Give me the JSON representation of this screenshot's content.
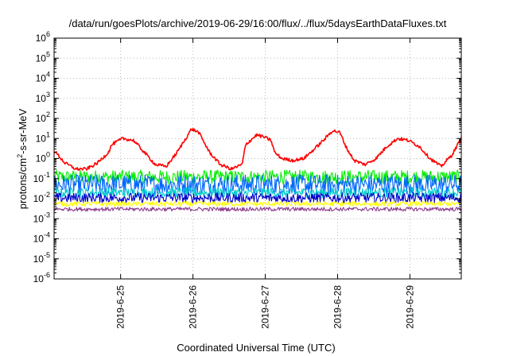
{
  "chart_data": {
    "type": "line",
    "title": "/data/run/goesPlots/archive/2019-06-29/16:00/flux/../flux/5daysEarthDataFluxes.txt",
    "xlabel": "Coordinated Universal Time (UTC)",
    "ylabel": {
      "before": "protons/cm",
      "sup": "2",
      "after": "-s-sr-MeV"
    },
    "yscale": "log",
    "ylim_exponents": [
      -6,
      6
    ],
    "y_ticks": [
      {
        "base": "10",
        "exp": "6"
      },
      {
        "base": "10",
        "exp": "5"
      },
      {
        "base": "10",
        "exp": "4"
      },
      {
        "base": "10",
        "exp": "3"
      },
      {
        "base": "10",
        "exp": "2"
      },
      {
        "base": "10",
        "exp": "1"
      },
      {
        "base": "10",
        "exp": "0"
      },
      {
        "base": "10",
        "exp": "-1"
      },
      {
        "base": "10",
        "exp": "-2"
      },
      {
        "base": "10",
        "exp": "-3"
      },
      {
        "base": "10",
        "exp": "-4"
      },
      {
        "base": "10",
        "exp": "-5"
      },
      {
        "base": "10",
        "exp": "-6"
      }
    ],
    "x_domain_days": [
      0,
      5.63
    ],
    "x_ticks": [
      {
        "label": "2019-6-25",
        "day": 0.92
      },
      {
        "label": "2019-6-26",
        "day": 1.92
      },
      {
        "label": "2019-6-27",
        "day": 2.92
      },
      {
        "label": "2019-6-28",
        "day": 3.92
      },
      {
        "label": "2019-6-29",
        "day": 4.92
      }
    ],
    "grid": true,
    "legend": "none",
    "series": [
      {
        "color": "#ff0000",
        "noise": 0.08,
        "x": [
          0.0,
          0.15,
          0.3,
          0.45,
          0.6,
          0.75,
          0.8,
          0.95,
          1.1,
          1.25,
          1.4,
          1.55,
          1.7,
          1.85,
          1.9,
          2.0,
          2.15,
          2.3,
          2.45,
          2.6,
          2.65,
          2.8,
          2.9,
          3.0,
          3.05,
          3.15,
          3.3,
          3.45,
          3.6,
          3.75,
          3.85,
          3.95,
          4.05,
          4.15,
          4.3,
          4.45,
          4.6,
          4.75,
          4.9,
          5.05,
          5.2,
          5.35,
          5.5,
          5.63
        ],
        "y": [
          2.5,
          0.6,
          0.3,
          0.3,
          0.6,
          2.0,
          5.0,
          10.0,
          8.0,
          2.0,
          0.5,
          0.4,
          2.0,
          15.0,
          30.0,
          20.0,
          2.0,
          0.5,
          0.3,
          0.5,
          5.0,
          15.0,
          12.0,
          8.0,
          2.0,
          1.0,
          0.8,
          1.0,
          3.0,
          10.0,
          25.0,
          20.0,
          3.0,
          0.8,
          0.5,
          1.0,
          4.0,
          10.0,
          8.0,
          4.0,
          1.0,
          0.4,
          1.5,
          10.0
        ]
      },
      {
        "color": "#00ee00",
        "base": 0.12,
        "noise": 0.35,
        "x": [
          0,
          5.63
        ],
        "y": [
          0.12,
          0.12
        ]
      },
      {
        "color": "#0066ff",
        "base": 0.05,
        "noise": 0.5,
        "x": [
          0,
          5.63
        ],
        "y": [
          0.05,
          0.05
        ]
      },
      {
        "color": "#00cccc",
        "base": 0.02,
        "noise": 0.25,
        "x": [
          0,
          5.63
        ],
        "y": [
          0.02,
          0.02
        ]
      },
      {
        "color": "#0000cc",
        "base": 0.011,
        "noise": 0.25,
        "x": [
          0,
          5.63
        ],
        "y": [
          0.011,
          0.011
        ]
      },
      {
        "color": "#ffff00",
        "base": 0.0055,
        "noise": 0.12,
        "x": [
          0,
          5.63
        ],
        "y": [
          0.0055,
          0.0055
        ]
      },
      {
        "color": "#8e3a8e",
        "base": 0.003,
        "noise": 0.1,
        "x": [
          0,
          5.63
        ],
        "y": [
          0.003,
          0.003
        ]
      }
    ]
  }
}
